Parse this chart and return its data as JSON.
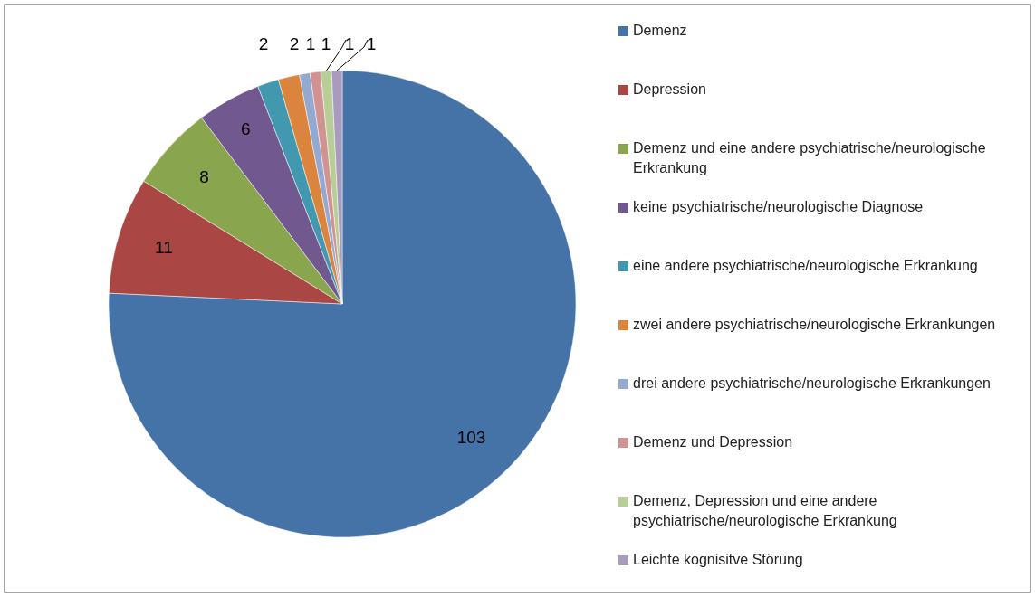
{
  "chart_data": {
    "type": "pie",
    "categories": [
      "Demenz",
      "Depression",
      "Demenz und eine andere psychiatrische/neurologische Erkrankung",
      "keine psychiatrische/neurologische Diagnose",
      "eine andere psychiatrische/neurologische Erkrankung",
      "zwei andere psychiatrische/neurologische Erkrankungen",
      "drei andere psychiatrische/neurologische Erkrankungen",
      "Demenz und Depression",
      "Demenz, Depression und eine andere psychiatrische/neurologische Erkrankung",
      "Leichte kognisitve Störung"
    ],
    "values": [
      103,
      11,
      8,
      6,
      2,
      2,
      1,
      1,
      1,
      1
    ],
    "colors": [
      "#4572a7",
      "#aa4643",
      "#89a54e",
      "#71588f",
      "#4198af",
      "#db843d",
      "#93a9cf",
      "#d19392",
      "#b9cd96",
      "#a99bbd"
    ],
    "data_labels": true,
    "legend": "right"
  }
}
